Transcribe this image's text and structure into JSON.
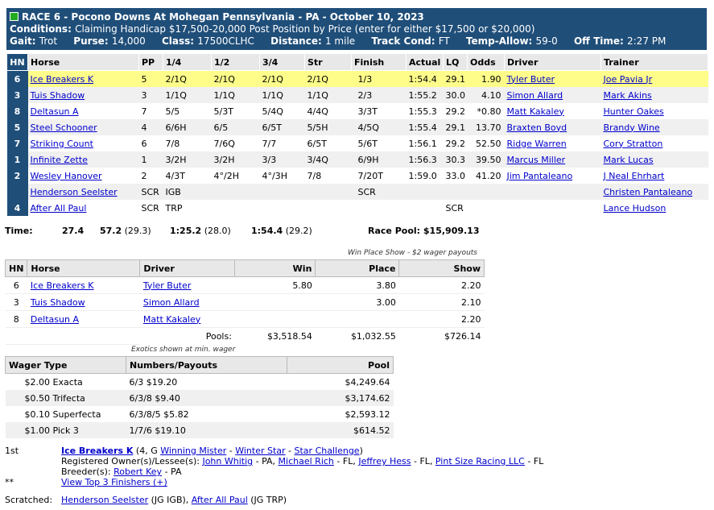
{
  "header": {
    "race_title": "RACE 6 - Pocono Downs At Mohegan Pennsylvania - PA - October 10, 2023",
    "conditions_label": "Conditions:",
    "conditions_text": "Claiming Handicap $17,500-20,000 Post Position by Price (enter for either $17,500 or $20,000)",
    "gait_label": "Gait:",
    "gait": "Trot",
    "purse_label": "Purse:",
    "purse": "14,000",
    "class_label": "Class:",
    "class": "17500CLHC",
    "distance_label": "Distance:",
    "distance": "1 mile",
    "track_label": "Track Cond:",
    "track": "FT",
    "temp_label": "Temp-Allow:",
    "temp": "59-0",
    "off_label": "Off Time:",
    "off": "2:27 PM"
  },
  "results": {
    "columns": [
      "HN",
      "Horse",
      "PP",
      "1/4",
      "1/2",
      "3/4",
      "Str",
      "Finish",
      "Actual",
      "LQ",
      "Odds",
      "Driver",
      "Trainer"
    ],
    "rows": [
      {
        "hn": "6",
        "horse": "Ice Breakers K",
        "pp": "5",
        "q1": "2/1Q",
        "q2": "2/1Q",
        "q3": "2/1Q",
        "str": "2/1Q",
        "fin": "1/3",
        "actual": "1:54.4",
        "lq": "29.1",
        "odds": "1.90",
        "driver": "Tyler Buter",
        "trainer": "Joe Pavia Jr"
      },
      {
        "hn": "3",
        "horse": "Tuis Shadow",
        "pp": "3",
        "q1": "1/1Q",
        "q2": "1/1Q",
        "q3": "1/1Q",
        "str": "1/1Q",
        "fin": "2/3",
        "actual": "1:55.2",
        "lq": "30.0",
        "odds": "4.10",
        "driver": "Simon Allard",
        "trainer": "Mark Akins"
      },
      {
        "hn": "8",
        "horse": "Deltasun A",
        "pp": "7",
        "q1": "5/5",
        "q2": "5/3T",
        "q3": "5/4Q",
        "str": "4/4Q",
        "fin": "3/3T",
        "actual": "1:55.3",
        "lq": "29.2",
        "odds": "*0.80",
        "driver": "Matt Kakaley",
        "trainer": "Hunter Oakes"
      },
      {
        "hn": "5",
        "horse": "Steel Schooner",
        "pp": "4",
        "q1": "6/6H",
        "q2": "6/5",
        "q3": "6/5T",
        "str": "5/5H",
        "fin": "4/5Q",
        "actual": "1:55.4",
        "lq": "29.1",
        "odds": "13.70",
        "driver": "Braxten Boyd",
        "trainer": "Brandy Wine"
      },
      {
        "hn": "7",
        "horse": "Striking Count",
        "pp": "6",
        "q1": "7/8",
        "q2": "7/6Q",
        "q3": "7/7",
        "str": "6/5T",
        "fin": "5/6T",
        "actual": "1:56.1",
        "lq": "29.2",
        "odds": "52.50",
        "driver": "Ridge Warren",
        "trainer": "Cory Stratton"
      },
      {
        "hn": "1",
        "horse": "Infinite Zette",
        "pp": "1",
        "q1": "3/2H",
        "q2": "3/2H",
        "q3": "3/3",
        "str": "3/4Q",
        "fin": "6/9H",
        "actual": "1:56.3",
        "lq": "30.3",
        "odds": "39.50",
        "driver": "Marcus Miller",
        "trainer": "Mark Lucas"
      },
      {
        "hn": "2",
        "horse": "Wesley Hanover",
        "pp": "2",
        "q1": "4/3T",
        "q2": "4°/2H",
        "q3": "4°/3H",
        "str": "7/8",
        "fin": "7/20T",
        "actual": "1:59.0",
        "lq": "33.0",
        "odds": "41.20",
        "driver": "Jim Pantaleano",
        "trainer": "J Neal Ehrhart"
      },
      {
        "hn": "",
        "horse": "Henderson Seelster",
        "pp": "SCR",
        "q1": "IGB",
        "q2": "",
        "q3": "",
        "str": "",
        "fin": "SCR",
        "actual": "",
        "lq": "",
        "odds": "",
        "driver": "",
        "trainer": "Christen Pantaleano"
      },
      {
        "hn": "4",
        "horse": "After All Paul",
        "pp": "SCR",
        "q1": "TRP",
        "q2": "",
        "q3": "",
        "str": "",
        "fin": "",
        "actual": "",
        "lq": "SCR",
        "odds": "",
        "driver": "",
        "trainer": "Lance Hudson"
      }
    ]
  },
  "times": {
    "label": "Time:",
    "q1": "27.4",
    "half": "57.2",
    "half_split": "(29.3)",
    "three_q": "1:25.2",
    "three_q_split": "(28.0)",
    "final": "1:54.4",
    "final_split": "(29.2)",
    "pool_label": "Race Pool:",
    "pool": "$15,909.13"
  },
  "wps": {
    "note": "Win Place Show - $2 wager payouts",
    "columns": [
      "HN",
      "Horse",
      "Driver",
      "Win",
      "Place",
      "Show"
    ],
    "rows": [
      {
        "hn": "6",
        "horse": "Ice Breakers K",
        "driver": "Tyler Buter",
        "win": "5.80",
        "place": "3.80",
        "show": "2.20"
      },
      {
        "hn": "3",
        "horse": "Tuis Shadow",
        "driver": "Simon Allard",
        "win": "",
        "place": "3.00",
        "show": "2.10"
      },
      {
        "hn": "8",
        "horse": "Deltasun A",
        "driver": "Matt Kakaley",
        "win": "",
        "place": "",
        "show": "2.20"
      }
    ],
    "pools_label": "Pools:",
    "pool_win": "$3,518.54",
    "pool_place": "$1,032.55",
    "pool_show": "$726.14"
  },
  "exotics": {
    "note": "Exotics shown at min. wager",
    "columns": [
      "Wager Type",
      "Numbers/Payouts",
      "Pool"
    ],
    "rows": [
      {
        "type": "$2.00 Exacta",
        "payout": "6/3 $19.20",
        "pool": "$4,249.64"
      },
      {
        "type": "$0.50 Trifecta",
        "payout": "6/3/8 $9.40",
        "pool": "$3,174.62"
      },
      {
        "type": "$0.10 Superfecta",
        "payout": "6/3/8/5 $5.82",
        "pool": "$2,593.12"
      },
      {
        "type": "$1.00 Pick 3",
        "payout": "1/7/6 $19.10",
        "pool": "$614.52"
      }
    ]
  },
  "winner": {
    "place": "1st",
    "name": "Ice Breakers K",
    "age_sex": "(4, G",
    "sire": "Winning Mister",
    "dam": "Winter Star",
    "damsire": "Star Challenge",
    "close": ")",
    "owners_label": "Registered Owner(s)/Lessee(s):",
    "owners": [
      {
        "name": "John Whitig",
        "loc": "- PA,"
      },
      {
        "name": "Michael Rich",
        "loc": "- FL,"
      },
      {
        "name": "Jeffrey Hess",
        "loc": "- FL,"
      },
      {
        "name": "Pint Size Racing LLC",
        "loc": "- FL"
      }
    ],
    "breeder_label": "Breeder(s):",
    "breeder": "Robert Key",
    "breeder_loc": "- PA",
    "stars": "**",
    "top3_link": "View Top 3 Finishers (+)",
    "scratched_label": "Scratched:",
    "scratched1": "Henderson Seelster",
    "scratched1_code": "(JG IGB),",
    "scratched2": "After All Paul",
    "scratched2_code": "(JG TRP)"
  }
}
